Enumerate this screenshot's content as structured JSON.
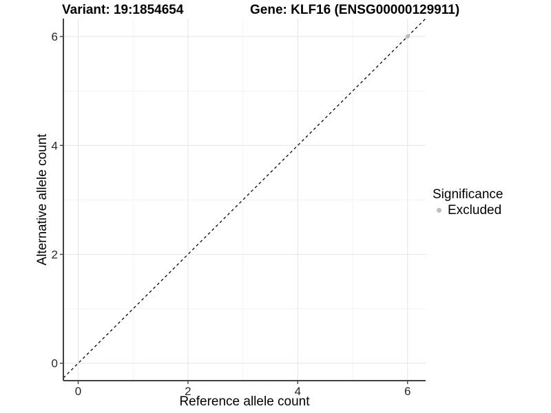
{
  "titles": {
    "variant": "Variant: 19:1854654",
    "gene": "Gene: KLF16 (ENSG00000129911)"
  },
  "legend": {
    "title": "Significance",
    "items": [
      {
        "label": "Excluded",
        "color": "#bebebe"
      }
    ]
  },
  "chart_data": {
    "type": "scatter",
    "title": "Variant: 19:1854654  /  Gene: KLF16 (ENSG00000129911)",
    "xlabel": "Reference allele count",
    "ylabel": "Alternative allele count",
    "xlim": [
      -0.27,
      6.33
    ],
    "ylim": [
      -0.32,
      6.33
    ],
    "x_ticks": [
      0,
      2,
      4,
      6
    ],
    "y_ticks": [
      0,
      2,
      4,
      6
    ],
    "x_minor_ticks": [
      1,
      3,
      5
    ],
    "y_minor_ticks": [
      1,
      3,
      5
    ],
    "grid": true,
    "legend_position": "right",
    "legend_title": "Significance",
    "series": [
      {
        "name": "Excluded",
        "color": "#bebebe",
        "points": [
          [
            6,
            6
          ]
        ]
      }
    ],
    "reference_line": {
      "slope": 1,
      "intercept": 0,
      "style": "dashed",
      "color": "#000000"
    },
    "style": {
      "major_grid_color": "#e4e4e4",
      "minor_grid_color": "#f2f2f2",
      "axis_line_color": "#404040",
      "tick_label_color": "#262626"
    }
  }
}
